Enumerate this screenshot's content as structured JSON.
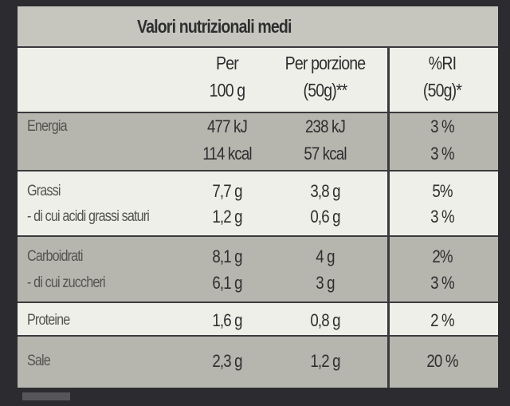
{
  "title": "Valori nutrizionali medi",
  "header": {
    "per100": [
      "Per",
      "100 g"
    ],
    "perPortion": [
      "Per porzione",
      "(50g)**"
    ],
    "ri": [
      "%RI",
      "(50g)*"
    ]
  },
  "bands": [
    {
      "rows": [
        {
          "label": "Energia",
          "per100": "477 kJ",
          "perPortion": "238 kJ",
          "ri": "3 %"
        },
        {
          "per100": "114 kcal",
          "perPortion": "57 kcal",
          "ri": "3 %"
        }
      ]
    },
    {
      "rows": [
        {
          "label": "Grassi",
          "per100": "7,7 g",
          "perPortion": "3,8 g",
          "ri": "5%"
        },
        {
          "label": "- di cui acidi grassi saturi",
          "per100": "1,2 g",
          "perPortion": "0,6 g",
          "ri": "3 %"
        }
      ]
    },
    {
      "rows": [
        {
          "label": "Carboidrati",
          "per100": "8,1 g",
          "perPortion": "4 g",
          "ri": "2%"
        },
        {
          "label": "- di cui zuccheri",
          "per100": "6,1 g",
          "perPortion": "3 g",
          "ri": "3 %"
        }
      ]
    },
    {
      "rows": [
        {
          "label": "Proteine",
          "per100": "1,6 g",
          "perPortion": "0,8 g",
          "ri": "2 %"
        }
      ]
    },
    {
      "rows": [
        {
          "label": "Sale",
          "per100": "2,3 g",
          "perPortion": "1,2 g",
          "ri": "20 %"
        }
      ]
    }
  ]
}
